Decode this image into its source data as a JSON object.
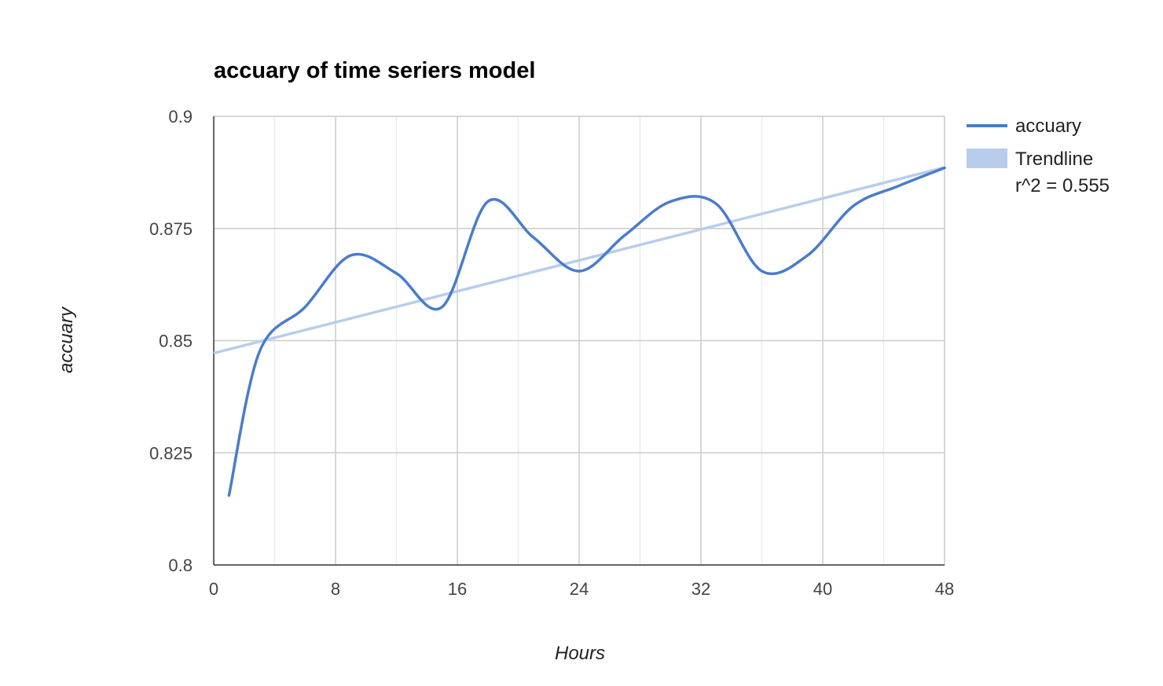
{
  "chart_data": {
    "type": "line",
    "title": "accuary of time seriers model",
    "xlabel": "Hours",
    "ylabel": "accuary",
    "xlim": [
      0,
      48
    ],
    "ylim": [
      0.8,
      0.9
    ],
    "x_ticks": [
      0,
      8,
      16,
      24,
      32,
      40,
      48
    ],
    "x_tick_labels": [
      "0",
      "8",
      "16",
      "24",
      "32",
      "40",
      "48"
    ],
    "x_minor_ticks": [
      4,
      12,
      20,
      28,
      36,
      44
    ],
    "y_ticks": [
      0.8,
      0.825,
      0.85,
      0.875,
      0.9
    ],
    "y_tick_labels": [
      "0.8",
      "0.825",
      "0.85",
      "0.875",
      "0.9"
    ],
    "grid": true,
    "smooth": true,
    "legend_position": "right",
    "series": [
      {
        "name": "accuary",
        "color": "#4a7ccc",
        "x": [
          1,
          3,
          6,
          9,
          12,
          15,
          18,
          21,
          24,
          27,
          30,
          33,
          36,
          39,
          42,
          45,
          48
        ],
        "y": [
          0.8155,
          0.8475,
          0.8575,
          0.869,
          0.865,
          0.8575,
          0.881,
          0.873,
          0.8655,
          0.8735,
          0.881,
          0.8805,
          0.8655,
          0.869,
          0.88,
          0.8845,
          0.8885
        ]
      }
    ],
    "trendline": {
      "name": "Trendline",
      "r2_label": "r^2 = 0.555",
      "color": "#b8cdec",
      "x": [
        0,
        48
      ],
      "y": [
        0.8472,
        0.8886
      ]
    }
  }
}
